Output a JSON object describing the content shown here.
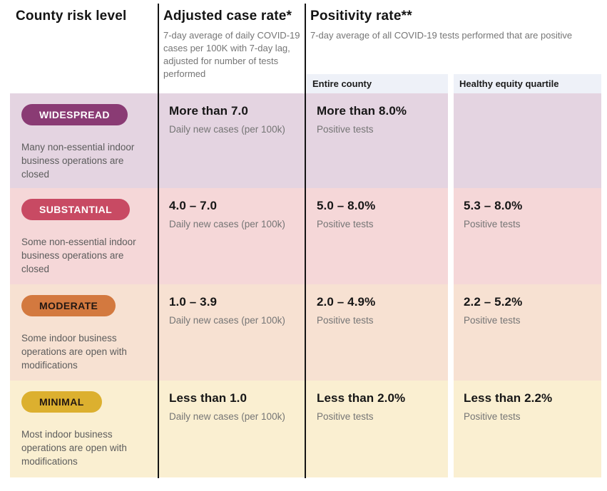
{
  "header": {
    "risk_level_title": "County risk level",
    "case_rate_title": "Adjusted case rate*",
    "case_rate_subtitle": "7-day average of daily COVID-19 cases per 100K with 7-day lag, adjusted for number of tests performed",
    "positivity_title": "Positivity rate**",
    "positivity_subtitle": "7-day average of all COVID-19 tests performed that are positive",
    "entire_county_label": "Entire county",
    "equity_label": "Healthy equity quartile"
  },
  "colors": {
    "divider": "#141414",
    "subheader_strip_bg": "#eef1f8",
    "widespread_badge": "#8a3b74",
    "substantial_badge": "#c84a63",
    "moderate_badge": "#d3793f",
    "minimal_badge": "#dcb02f"
  },
  "rows": [
    {
      "name": "WIDESPREAD",
      "description": "Many non-essential indoor business operations are closed",
      "case_value": "More than 7.0",
      "case_sub": "Daily new cases (per 100k)",
      "entire_value": "More than 8.0%",
      "entire_sub": "Positive tests",
      "equity_value": "",
      "equity_sub": "",
      "badge_bg": "#8a3b74",
      "badge_fg": "#ffffff",
      "row_bg": "#e4d4e1"
    },
    {
      "name": "SUBSTANTIAL",
      "description": "Some non-essential indoor business operations are closed",
      "case_value": "4.0 – 7.0",
      "case_sub": "Daily new cases (per 100k)",
      "entire_value": "5.0 – 8.0%",
      "entire_sub": "Positive tests",
      "equity_value": "5.3 – 8.0%",
      "equity_sub": "Positive tests",
      "badge_bg": "#c84a63",
      "badge_fg": "#ffffff",
      "row_bg": "#f5d7d8"
    },
    {
      "name": "MODERATE",
      "description": "Some indoor business operations are open with modifications",
      "case_value": "1.0 – 3.9",
      "case_sub": "Daily new cases (per 100k)",
      "entire_value": "2.0 – 4.9%",
      "entire_sub": "Positive tests",
      "equity_value": "2.2 – 5.2%",
      "equity_sub": "Positive tests",
      "badge_bg": "#d3793f",
      "badge_fg": "#221712",
      "row_bg": "#f7e1d2"
    },
    {
      "name": "MINIMAL",
      "description": "Most indoor business operations are open with modifications",
      "case_value": "Less than 1.0",
      "case_sub": "Daily new cases (per 100k)",
      "entire_value": "Less than 2.0%",
      "entire_sub": "Positive tests",
      "equity_value": "Less than 2.2%",
      "equity_sub": "Positive tests",
      "badge_bg": "#dcb02f",
      "badge_fg": "#221712",
      "row_bg": "#faefd1"
    }
  ],
  "chart_data": {
    "type": "table",
    "title": "County risk level",
    "columns": [
      "County risk level",
      "Adjusted case rate* (7-day average of daily COVID-19 cases per 100K with 7-day lag, adjusted for number of tests performed)",
      "Positivity rate** — Entire county (7-day average of all COVID-19 tests performed that are positive)",
      "Positivity rate** — Healthy equity quartile"
    ],
    "rows": [
      [
        "WIDESPREAD — Many non-essential indoor business operations are closed",
        "More than 7.0 daily new cases (per 100k)",
        "More than 8.0% positive tests",
        ""
      ],
      [
        "SUBSTANTIAL — Some non-essential indoor business operations are closed",
        "4.0 – 7.0 daily new cases (per 100k)",
        "5.0 – 8.0% positive tests",
        "5.3 – 8.0% positive tests"
      ],
      [
        "MODERATE — Some indoor business operations are open with modifications",
        "1.0 – 3.9 daily new cases (per 100k)",
        "2.0 – 4.9% positive tests",
        "2.2 – 5.2% positive tests"
      ],
      [
        "MINIMAL — Most indoor business operations are open with modifications",
        "Less than 1.0 daily new cases (per 100k)",
        "Less than 2.0% positive tests",
        "Less than 2.2% positive tests"
      ]
    ]
  }
}
